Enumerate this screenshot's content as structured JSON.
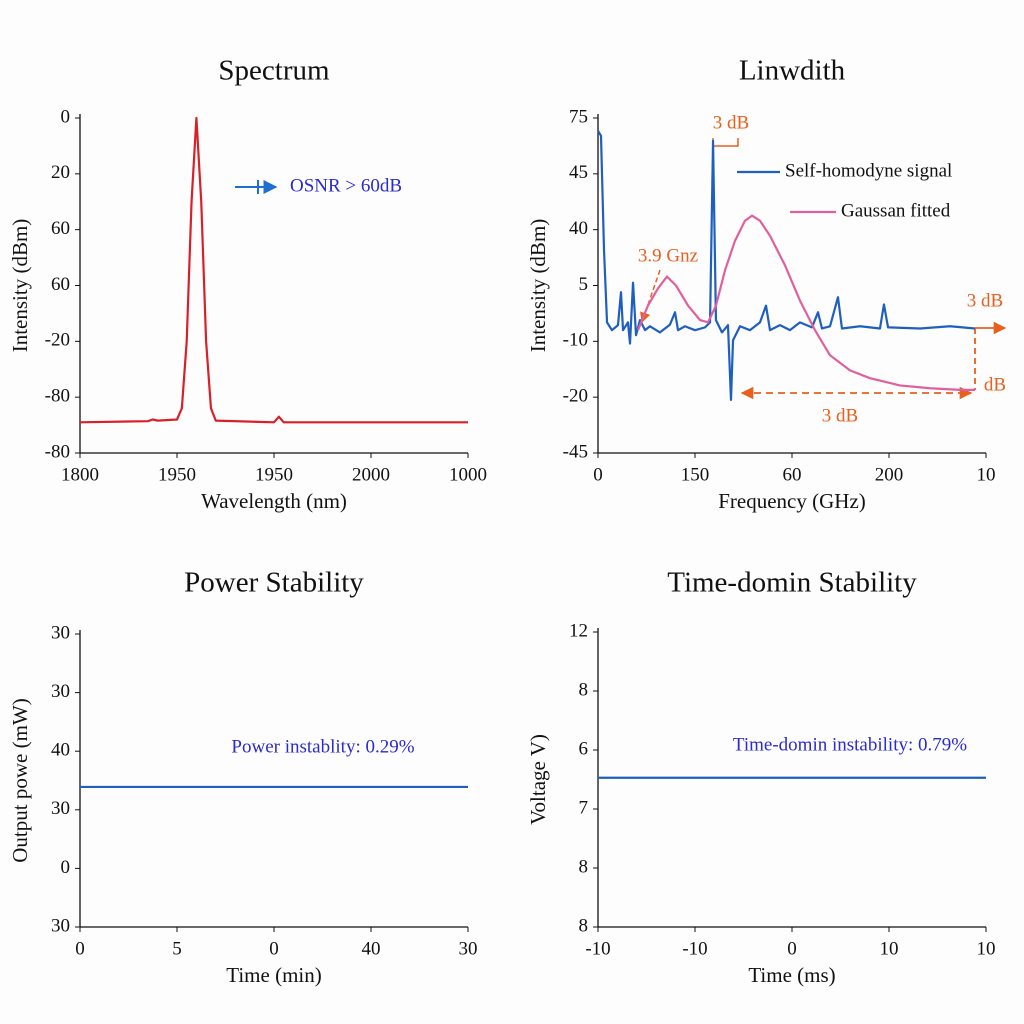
{
  "chart_data": [
    {
      "type": "line",
      "title": "Spectrum",
      "xlabel": "Wavelength (nm)",
      "ylabel": "Intensity (dBm)",
      "xlim": [
        0,
        4
      ],
      "ylim": [
        0,
        6
      ],
      "xticks": [
        {
          "value": 0,
          "label": "1800"
        },
        {
          "value": 1,
          "label": "1950"
        },
        {
          "value": 2,
          "label": "1950"
        },
        {
          "value": 3,
          "label": "2000"
        },
        {
          "value": 4,
          "label": "1000"
        }
      ],
      "yticks": [
        {
          "value": 6,
          "label": "0"
        },
        {
          "value": 5,
          "label": "20"
        },
        {
          "value": 4,
          "label": "60"
        },
        {
          "value": 3,
          "label": "60"
        },
        {
          "value": 2,
          "label": "-20"
        },
        {
          "value": 1,
          "label": "-80"
        },
        {
          "value": 0,
          "label": "-80"
        }
      ],
      "series": [
        {
          "color": "#d8202a",
          "x": [
            0,
            0.7,
            0.75,
            0.8,
            1.0,
            1.05,
            1.1,
            1.15,
            1.2,
            1.25,
            1.3,
            1.35,
            1.4,
            2.0,
            2.05,
            2.1,
            4
          ],
          "values": [
            0.55,
            0.57,
            0.6,
            0.58,
            0.6,
            0.8,
            2,
            4.5,
            6,
            4.5,
            2,
            0.8,
            0.58,
            0.55,
            0.65,
            0.55,
            0.55
          ]
        }
      ],
      "annotations": [
        "OSNR > 60dB"
      ]
    },
    {
      "type": "line",
      "title": "Linwdith",
      "xlabel": "Frequency (GHz)",
      "ylabel": "Intensity (dBm)",
      "xlim": [
        0,
        4
      ],
      "ylim": [
        0,
        6
      ],
      "xticks": [
        {
          "value": 0,
          "label": "0"
        },
        {
          "value": 1,
          "label": "150"
        },
        {
          "value": 2,
          "label": "60"
        },
        {
          "value": 3,
          "label": "200"
        },
        {
          "value": 4,
          "label": "10"
        }
      ],
      "yticks": [
        {
          "value": 6,
          "label": "75"
        },
        {
          "value": 5,
          "label": "45"
        },
        {
          "value": 4,
          "label": "40"
        },
        {
          "value": 3,
          "label": "5"
        },
        {
          "value": 2,
          "label": "-10"
        },
        {
          "value": 1,
          "label": "-20"
        },
        {
          "value": 0,
          "label": "-45"
        }
      ],
      "series": [
        {
          "name": "Self-homodyne signal",
          "color": "#1f5fbf",
          "x": [
            0,
            0.031,
            0.062,
            0.093,
            0.144,
            0.206,
            0.237,
            0.258,
            0.309,
            0.33,
            0.361,
            0.392,
            0.433,
            0.485,
            0.536,
            0.639,
            0.742,
            0.794,
            0.825,
            0.897,
            1.0,
            1.103,
            1.155,
            1.186,
            1.216,
            1.278,
            1.34,
            1.371,
            1.392,
            1.464,
            1.567,
            1.67,
            1.732,
            1.773,
            1.876,
            1.979,
            2.082,
            2.206,
            2.268,
            2.309,
            2.392,
            2.474,
            2.515,
            2.701,
            2.907,
            2.948,
            2.99,
            3.32,
            3.629,
            3.887
          ],
          "values": [
            5.77,
            5.68,
            3.63,
            2.34,
            2.2,
            2.29,
            2.88,
            2.2,
            2.34,
            1.96,
            3.05,
            2.11,
            2.38,
            2.2,
            2.27,
            2.16,
            2.3,
            2.52,
            2.2,
            2.27,
            2.2,
            2.25,
            2.34,
            5.59,
            2.38,
            2.16,
            2.29,
            0.95,
            2.02,
            2.27,
            2.2,
            2.34,
            2.64,
            2.2,
            2.29,
            2.2,
            2.34,
            2.25,
            2.52,
            2.23,
            2.27,
            2.79,
            2.23,
            2.27,
            2.23,
            2.66,
            2.25,
            2.23,
            2.27,
            2.23
          ]
        },
        {
          "name": "Gaussan fitted",
          "color": "#e0609e",
          "x": [
            0.412,
            0.515,
            0.619,
            0.711,
            0.804,
            0.928,
            1.052,
            1.134,
            1.216,
            1.309,
            1.412,
            1.515,
            1.588,
            1.67,
            1.773,
            1.928,
            2.082,
            2.237,
            2.392,
            2.598,
            2.804,
            3.113,
            3.423,
            3.732,
            3.887
          ],
          "values": [
            2.2,
            2.64,
            2.95,
            3.16,
            3.0,
            2.64,
            2.38,
            2.34,
            2.64,
            3.27,
            3.8,
            4.16,
            4.25,
            4.16,
            3.89,
            3.36,
            2.73,
            2.2,
            1.75,
            1.48,
            1.34,
            1.21,
            1.16,
            1.13,
            1.13
          ]
        }
      ],
      "annotations": [
        "3 dB",
        "3.9 Gnz",
        "3 dB",
        "dB",
        "3 dB"
      ]
    },
    {
      "type": "line",
      "title": "Power Stability",
      "xlabel": "Time (min)",
      "ylabel": "Output powe (mW)",
      "xlim": [
        0,
        4
      ],
      "ylim": [
        0,
        5
      ],
      "xticks": [
        {
          "value": 0,
          "label": "0"
        },
        {
          "value": 1,
          "label": "5"
        },
        {
          "value": 2,
          "label": "0"
        },
        {
          "value": 3,
          "label": "40"
        },
        {
          "value": 4,
          "label": "30"
        }
      ],
      "yticks": [
        {
          "value": 5,
          "label": "30"
        },
        {
          "value": 4,
          "label": "30"
        },
        {
          "value": 3,
          "label": "40"
        },
        {
          "value": 2,
          "label": "30"
        },
        {
          "value": 1,
          "label": "0"
        },
        {
          "value": 0,
          "label": "30"
        }
      ],
      "series": [
        {
          "color": "#1f5fbf",
          "x": [
            0,
            4
          ],
          "values": [
            2.39,
            2.39
          ]
        }
      ],
      "annotations": [
        "Power instablity: 0.29%"
      ]
    },
    {
      "type": "line",
      "title": "Time-domin Stability",
      "xlabel": "Time (ms)",
      "ylabel": "Voltage V)",
      "xlim": [
        0,
        4
      ],
      "ylim": [
        0,
        5
      ],
      "xticks": [
        {
          "value": 0,
          "label": "-10"
        },
        {
          "value": 1,
          "label": "-10"
        },
        {
          "value": 2,
          "label": "0"
        },
        {
          "value": 3,
          "label": "10"
        },
        {
          "value": 4,
          "label": "10"
        }
      ],
      "yticks": [
        {
          "value": 5,
          "label": "12"
        },
        {
          "value": 4,
          "label": "8"
        },
        {
          "value": 3,
          "label": "6"
        },
        {
          "value": 2,
          "label": "7"
        },
        {
          "value": 1,
          "label": "8"
        },
        {
          "value": 0,
          "label": "8"
        }
      ],
      "series": [
        {
          "color": "#1f5fbf",
          "x": [
            0,
            4
          ],
          "values": [
            2.53,
            2.53
          ]
        }
      ],
      "annotations": [
        "Time-domin instability: 0.79%"
      ]
    }
  ]
}
